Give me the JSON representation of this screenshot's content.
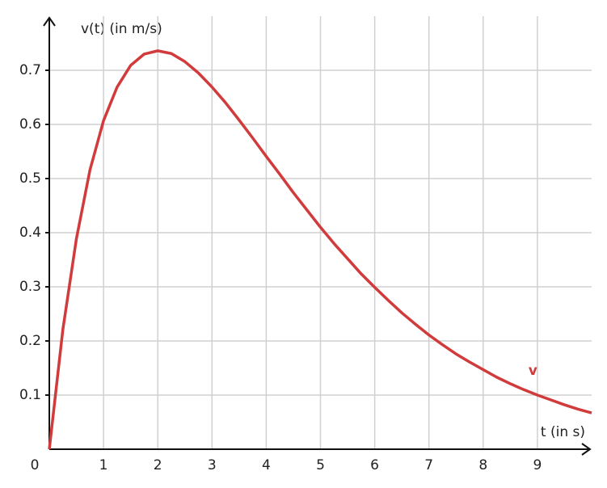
{
  "chart_data": {
    "type": "line",
    "y_label": "v(t) (in m/s)",
    "x_label": "t (in s)",
    "origin_label": "0",
    "x": [
      0,
      0.25,
      0.5,
      0.75,
      1,
      1.25,
      1.5,
      1.75,
      2,
      2.25,
      2.5,
      2.75,
      3,
      3.25,
      3.5,
      3.75,
      4,
      4.25,
      4.5,
      4.75,
      5,
      5.25,
      5.5,
      5.75,
      6,
      6.25,
      6.5,
      6.75,
      7,
      7.25,
      7.5,
      7.75,
      8,
      8.25,
      8.5,
      8.75,
      9,
      9.25,
      9.5,
      9.75,
      10
    ],
    "series": [
      {
        "name": "v",
        "color": "#d13b3b",
        "values": [
          0,
          0.221,
          0.389,
          0.516,
          0.607,
          0.669,
          0.709,
          0.73,
          0.736,
          0.731,
          0.716,
          0.695,
          0.669,
          0.64,
          0.608,
          0.575,
          0.541,
          0.508,
          0.474,
          0.442,
          0.41,
          0.38,
          0.352,
          0.324,
          0.299,
          0.275,
          0.252,
          0.231,
          0.211,
          0.193,
          0.176,
          0.161,
          0.147,
          0.133,
          0.121,
          0.11,
          0.1,
          0.091,
          0.082,
          0.074,
          0.067
        ]
      }
    ],
    "xlim": [
      0,
      10
    ],
    "ylim": [
      0,
      0.8
    ],
    "xticks": [
      1,
      2,
      3,
      4,
      5,
      6,
      7,
      8,
      9
    ],
    "yticks": [
      0.1,
      0.2,
      0.3,
      0.4,
      0.5,
      0.6,
      0.7
    ],
    "grid": true
  }
}
